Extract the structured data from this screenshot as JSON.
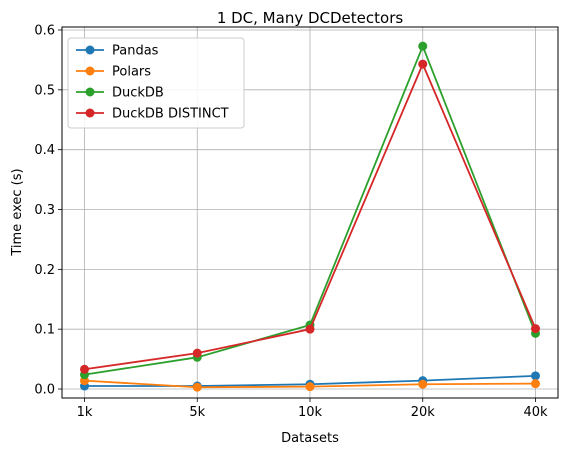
{
  "chart_data": {
    "type": "line",
    "title": "1 DC, Many DCDetectors",
    "xlabel": "Datasets",
    "ylabel": "Time exec (s)",
    "categories": [
      "1k",
      "5k",
      "10k",
      "20k",
      "40k"
    ],
    "ylim": [
      -0.015,
      0.605
    ],
    "yticks": [
      0.0,
      0.1,
      0.2,
      0.3,
      0.4,
      0.5,
      0.6
    ],
    "ytick_labels": [
      "0.0",
      "0.1",
      "0.2",
      "0.3",
      "0.4",
      "0.5",
      "0.6"
    ],
    "grid": true,
    "legend_position": "top-left",
    "series": [
      {
        "name": "Pandas",
        "color": "#1f77b4",
        "values": [
          0.005,
          0.005,
          0.008,
          0.014,
          0.022
        ]
      },
      {
        "name": "Polars",
        "color": "#ff7f0e",
        "values": [
          0.014,
          0.003,
          0.004,
          0.008,
          0.009
        ]
      },
      {
        "name": "DuckDB",
        "color": "#2ca02c",
        "values": [
          0.024,
          0.053,
          0.107,
          0.573,
          0.093
        ]
      },
      {
        "name": "DuckDB DISTINCT",
        "color": "#d62728",
        "values": [
          0.033,
          0.06,
          0.1,
          0.543,
          0.101
        ]
      }
    ]
  }
}
